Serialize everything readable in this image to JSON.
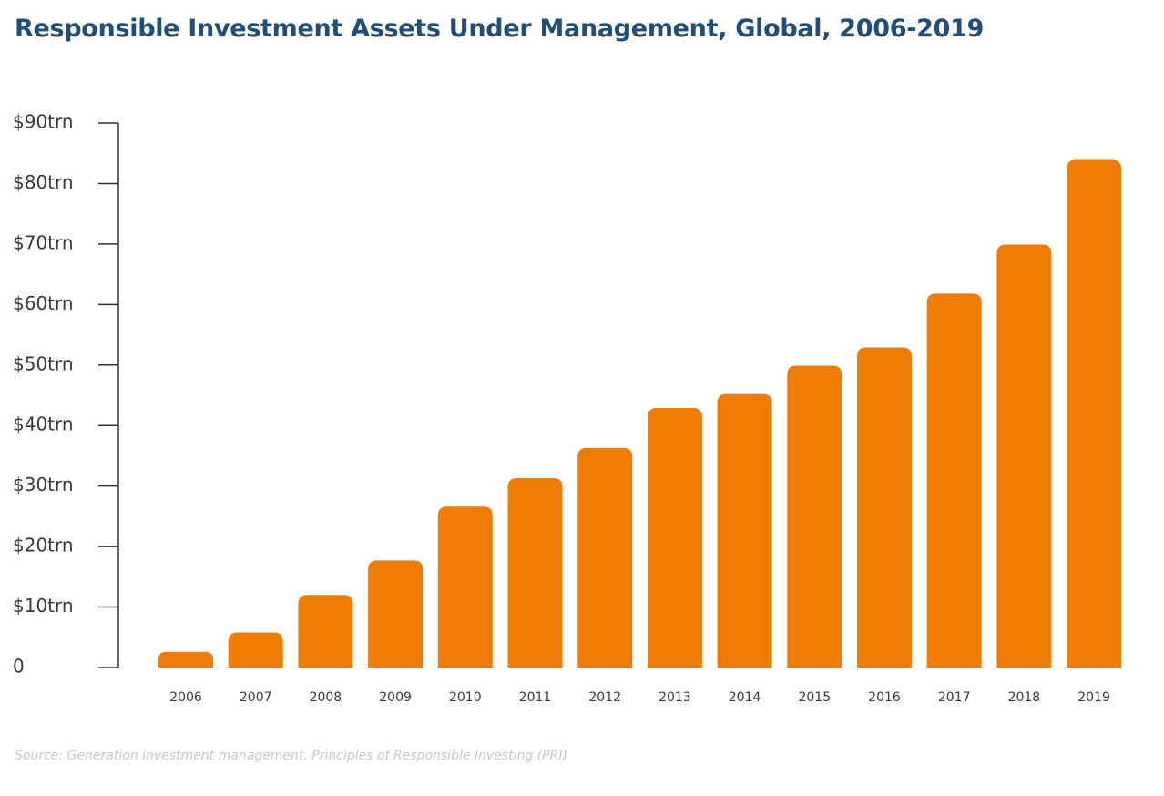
{
  "chart_data": {
    "type": "bar",
    "title": "Responsible Investment Assets Under Management, Global, 2006-2019",
    "source": "Source: Generation investment management, Principles of Responsible Investing (PRI)",
    "categories": [
      "2006",
      "2007",
      "2008",
      "2009",
      "2010",
      "2011",
      "2012",
      "2013",
      "2014",
      "2015",
      "2016",
      "2017",
      "2018",
      "2019"
    ],
    "values": [
      2.6,
      5.8,
      12,
      17.7,
      26.6,
      31.3,
      36.3,
      42.9,
      45.2,
      49.9,
      52.9,
      61.8,
      69.9,
      83.9
    ],
    "ylim": [
      0,
      90
    ],
    "yticks": [
      0,
      10,
      20,
      30,
      40,
      50,
      60,
      70,
      80,
      90
    ],
    "ytick_labels": [
      "0",
      "$10trn",
      "$20trn",
      "$30trn",
      "$40trn",
      "$50trn",
      "$60trn",
      "$70trn",
      "$80trn",
      "$90trn"
    ],
    "grid": false,
    "legend": "none",
    "bar_color": "#f07c05",
    "axis_color": "#333333"
  }
}
